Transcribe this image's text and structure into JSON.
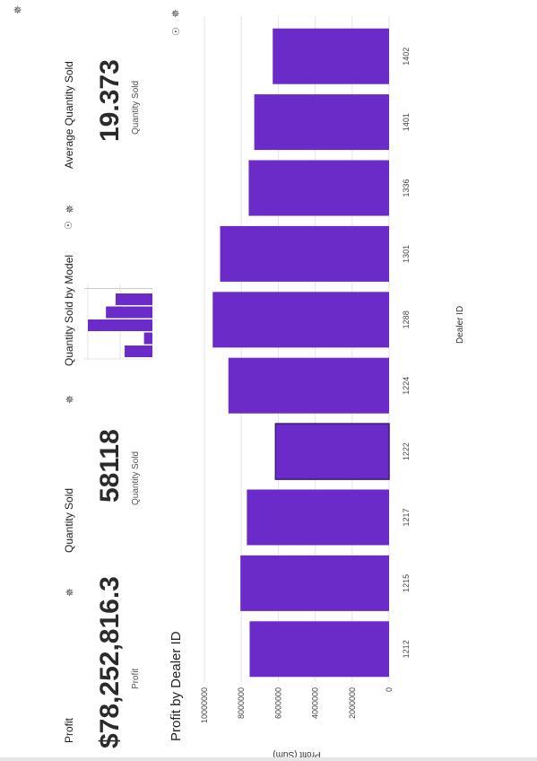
{
  "colors": {
    "bar": "#6a2bc8",
    "grid": "#e5e5e5",
    "text": "#333333"
  },
  "icons": {
    "settings": "gear-icon",
    "insight": "lightbulb-icon"
  },
  "cards": {
    "profit": {
      "title": "Profit",
      "value": "$78,252,816.3",
      "subtitle": "Profit"
    },
    "quantity_sold": {
      "title": "Quantity Sold",
      "value": "58118",
      "subtitle": "Quantity Sold"
    },
    "quantity_by_model": {
      "title": "Quantity Sold by Model"
    },
    "avg_quantity": {
      "title": "Average Quantity Sold",
      "value": "19.373",
      "subtitle": "Quantity Sold"
    },
    "profit_by_dealer": {
      "title": "Profit by Dealer ID"
    }
  },
  "chart_data": [
    {
      "type": "bar",
      "title": "Quantity Sold by Model",
      "categories": [
        "",
        "",
        "",
        "",
        ""
      ],
      "values": [
        0.43,
        0.13,
        1.0,
        0.72,
        0.57
      ],
      "xlabel": "",
      "ylabel": "",
      "grid": true
    },
    {
      "type": "bar",
      "title": "Profit by Dealer ID",
      "categories": [
        "1212",
        "1215",
        "1217",
        "1222",
        "1224",
        "1288",
        "1301",
        "1336",
        "1401",
        "1402"
      ],
      "values": [
        7550000,
        8050000,
        7700000,
        6150000,
        8700000,
        9550000,
        9150000,
        7600000,
        7300000,
        6300000
      ],
      "xlabel": "Dealer ID",
      "ylabel": "Profit (Sum)",
      "yticks": [
        "0",
        "2000000",
        "4000000",
        "6000000",
        "8000000",
        "10000000"
      ],
      "ylim": [
        0,
        10000000
      ],
      "grid": true
    }
  ]
}
